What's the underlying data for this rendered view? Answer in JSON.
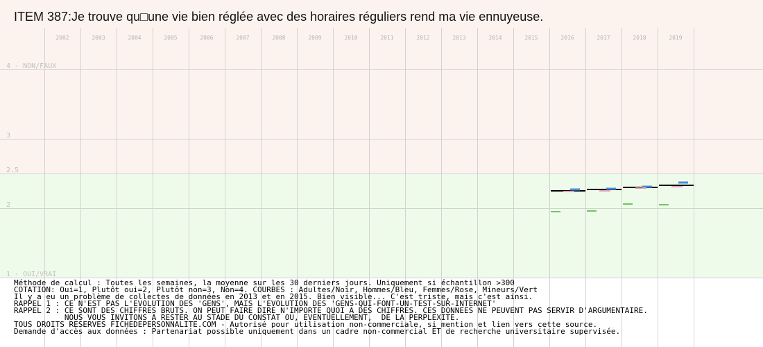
{
  "chart_data": {
    "type": "line",
    "title": "ITEM 387:Je trouve qu□une vie bien réglée avec des horaires réguliers rend ma vie ennuyeuse.",
    "years": [
      "2002",
      "2003",
      "2004",
      "2005",
      "2006",
      "2007",
      "2008",
      "2009",
      "2010",
      "2011",
      "2012",
      "2013",
      "2014",
      "2015",
      "2016",
      "2017",
      "2018",
      "2019"
    ],
    "ylim": [
      1,
      4
    ],
    "y_ticks": [
      {
        "value": 4,
        "label": "4 - NON/FAUX"
      },
      {
        "value": 3,
        "label": "3"
      },
      {
        "value": 2.5,
        "label": "2.5"
      },
      {
        "value": 2,
        "label": "2"
      },
      {
        "value": 1,
        "label": "1 - OUI/VRAI"
      }
    ],
    "bands": [
      {
        "from": 2.5,
        "to": 4,
        "color": "#fdf3ee"
      },
      {
        "from": 1,
        "to": 2.5,
        "color": "#effbea"
      }
    ],
    "grid": true,
    "series": [
      {
        "name": "Adultes",
        "color": "#000000",
        "values": {
          "2016": 2.25,
          "2017": 2.27,
          "2018": 2.3,
          "2019": 2.33
        }
      },
      {
        "name": "Hommes",
        "color": "#4a8cdc",
        "values": {
          "2016": 2.27,
          "2017": 2.28,
          "2018": 2.31,
          "2019": 2.37
        }
      },
      {
        "name": "Femmes",
        "color": "#e6a0b4",
        "values": {
          "2016": 2.24,
          "2017": 2.25,
          "2018": 2.29,
          "2019": 2.31
        }
      },
      {
        "name": "Mineurs",
        "color": "#6cc85a",
        "values": {
          "2016": 1.95,
          "2017": 1.96,
          "2018": 2.06,
          "2019": 2.05
        }
      }
    ]
  },
  "notes": [
    "Méthode de calcul : Toutes les semaines, la moyenne sur les 30 derniers jours. Uniquement si échantillon >300",
    "COTATION: Oui=1, Plutôt oui=2, Plutôt non=3, Non=4. COURBES : Adultes/Noir, Hommes/Bleu, Femmes/Rose, Mineurs/Vert",
    "Il y a eu un problème de collectes de données en 2013 et en 2015. Bien visible... C'est triste, mais c'est ainsi.",
    "RAPPEL 1 : CE N'EST PAS L'EVOLUTION DES 'GENS', MAIS L'EVOLUTION DES 'GENS-QUI-FONT-UN-TEST-SUR-INTERNET'",
    "RAPPEL 2 : CE SONT DES CHIFFRES BRUTS. ON PEUT FAIRE DIRE N'IMPORTE QUOI A DES CHIFFRES. CES DONNEES NE PEUVENT PAS SERVIR D'ARGUMENTAIRE.",
    "           NOUS VOUS INVITONS A RESTER AU STADE DU CONSTAT OU, EVENTUELLEMENT,  DE LA PERPLEXITE.",
    "TOUS DROITS RESERVES FICHEDEPERSONNALITE.COM - Autorisé pour utilisation non-commerciale, si mention et lien vers cette source.",
    "Demande d'accès aux données : Partenariat possible uniquement dans un cadre non-commercial ET de recherche universitaire supervisée."
  ]
}
